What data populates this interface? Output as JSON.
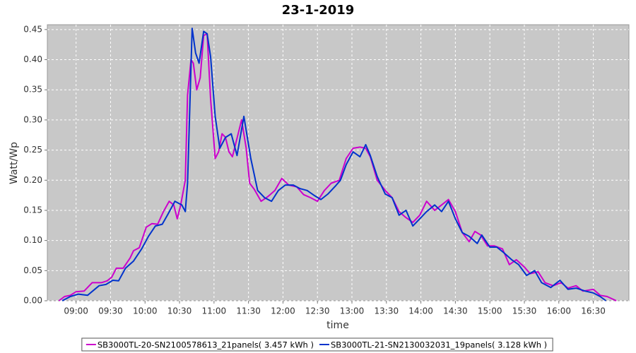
{
  "chart_data": {
    "type": "line",
    "title": "23-1-2019",
    "x_label": "time",
    "y_label": "Watt/Wp",
    "xlim": [
      515,
      1021
    ],
    "ylim": [
      0,
      0.458
    ],
    "grid": true,
    "xticks": [
      {
        "value": 540,
        "label": "09:00"
      },
      {
        "value": 570,
        "label": "09:30"
      },
      {
        "value": 600,
        "label": "10:00"
      },
      {
        "value": 630,
        "label": "10:30"
      },
      {
        "value": 660,
        "label": "11:00"
      },
      {
        "value": 690,
        "label": "11:30"
      },
      {
        "value": 720,
        "label": "12:00"
      },
      {
        "value": 750,
        "label": "12:30"
      },
      {
        "value": 780,
        "label": "13:00"
      },
      {
        "value": 810,
        "label": "13:30"
      },
      {
        "value": 840,
        "label": "14:00"
      },
      {
        "value": 870,
        "label": "14:30"
      },
      {
        "value": 900,
        "label": "15:00"
      },
      {
        "value": 930,
        "label": "15:30"
      },
      {
        "value": 960,
        "label": "16:00"
      },
      {
        "value": 990,
        "label": "16:30"
      }
    ],
    "yticks": [
      {
        "value": 0,
        "label": "0.00"
      },
      {
        "value": 0.05,
        "label": "0.05"
      },
      {
        "value": 0.1,
        "label": "0.10"
      },
      {
        "value": 0.15,
        "label": "0.15"
      },
      {
        "value": 0.2,
        "label": "0.20"
      },
      {
        "value": 0.25,
        "label": "0.25"
      },
      {
        "value": 0.3,
        "label": "0.30"
      },
      {
        "value": 0.35,
        "label": "0.35"
      },
      {
        "value": 0.4,
        "label": "0.40"
      },
      {
        "value": 0.45,
        "label": "0.45"
      }
    ],
    "series": [
      {
        "name": "SB3000TL-20-SN2100578613_21panels( 3.457 kWh )",
        "color": "#cc00cc",
        "x": [
          525,
          530,
          535,
          540,
          547,
          554,
          562,
          567,
          571,
          575,
          581,
          587,
          590,
          595,
          601,
          606,
          611,
          616,
          621,
          625,
          628,
          631,
          635,
          637,
          640,
          642,
          645,
          648,
          651,
          654,
          657,
          661,
          664,
          667,
          670,
          673,
          676,
          681,
          684,
          688,
          691,
          695,
          701,
          707,
          713,
          719,
          725,
          732,
          738,
          744,
          750,
          756,
          762,
          769,
          775,
          781,
          787,
          792,
          796,
          802,
          809,
          815,
          821,
          827,
          833,
          839,
          845,
          852,
          858,
          864,
          870,
          876,
          882,
          887,
          892,
          898,
          904,
          911,
          917,
          923,
          930,
          935,
          942,
          948,
          955,
          962,
          968,
          975,
          981,
          990,
          996,
          1002,
          1010
        ],
        "values": [
          0,
          0.007,
          0.009,
          0.015,
          0.016,
          0.03,
          0.03,
          0.033,
          0.039,
          0.054,
          0.054,
          0.071,
          0.083,
          0.088,
          0.122,
          0.128,
          0.127,
          0.148,
          0.165,
          0.159,
          0.136,
          0.159,
          0.2,
          0.341,
          0.4,
          0.394,
          0.35,
          0.37,
          0.44,
          0.443,
          0.335,
          0.236,
          0.247,
          0.277,
          0.271,
          0.247,
          0.239,
          0.277,
          0.3,
          0.253,
          0.195,
          0.185,
          0.165,
          0.173,
          0.183,
          0.203,
          0.192,
          0.189,
          0.176,
          0.171,
          0.165,
          0.183,
          0.195,
          0.2,
          0.236,
          0.253,
          0.255,
          0.253,
          0.239,
          0.2,
          0.183,
          0.171,
          0.148,
          0.138,
          0.13,
          0.142,
          0.165,
          0.15,
          0.159,
          0.168,
          0.148,
          0.113,
          0.098,
          0.115,
          0.109,
          0.091,
          0.091,
          0.086,
          0.06,
          0.068,
          0.056,
          0.045,
          0.048,
          0.03,
          0.025,
          0.03,
          0.021,
          0.025,
          0.016,
          0.019,
          0.009,
          0.007,
          0
        ]
      },
      {
        "name": "SB3000TL-21-SN2130032031_19panels( 3.128 kWh )",
        "color": "#0033cc",
        "x": [
          528,
          535,
          542,
          550,
          560,
          566,
          572,
          577,
          583,
          590,
          597,
          603,
          609,
          615,
          620,
          626,
          632,
          635,
          637,
          641,
          644,
          647,
          651,
          654,
          657,
          661,
          665,
          670,
          675,
          680,
          686,
          692,
          698,
          704,
          710,
          716,
          722,
          729,
          735,
          741,
          747,
          753,
          759,
          766,
          770,
          775,
          781,
          787,
          792,
          796,
          802,
          809,
          815,
          821,
          827,
          833,
          839,
          845,
          852,
          858,
          864,
          870,
          876,
          882,
          889,
          893,
          900,
          906,
          912,
          919,
          925,
          932,
          939,
          945,
          953,
          961,
          968,
          975,
          983,
          990,
          996,
          1001
        ],
        "values": [
          0,
          0.007,
          0.011,
          0.009,
          0.025,
          0.027,
          0.034,
          0.033,
          0.054,
          0.066,
          0.086,
          0.107,
          0.124,
          0.127,
          0.144,
          0.165,
          0.159,
          0.148,
          0.195,
          0.452,
          0.411,
          0.394,
          0.447,
          0.443,
          0.405,
          0.306,
          0.253,
          0.271,
          0.277,
          0.241,
          0.306,
          0.236,
          0.183,
          0.171,
          0.165,
          0.183,
          0.192,
          0.192,
          0.186,
          0.183,
          0.175,
          0.168,
          0.177,
          0.191,
          0.2,
          0.226,
          0.247,
          0.239,
          0.259,
          0.241,
          0.206,
          0.177,
          0.171,
          0.142,
          0.15,
          0.124,
          0.136,
          0.148,
          0.159,
          0.148,
          0.165,
          0.136,
          0.113,
          0.107,
          0.095,
          0.109,
          0.089,
          0.089,
          0.08,
          0.068,
          0.06,
          0.042,
          0.05,
          0.03,
          0.022,
          0.034,
          0.019,
          0.021,
          0.016,
          0.013,
          0.007,
          0
        ]
      }
    ]
  }
}
